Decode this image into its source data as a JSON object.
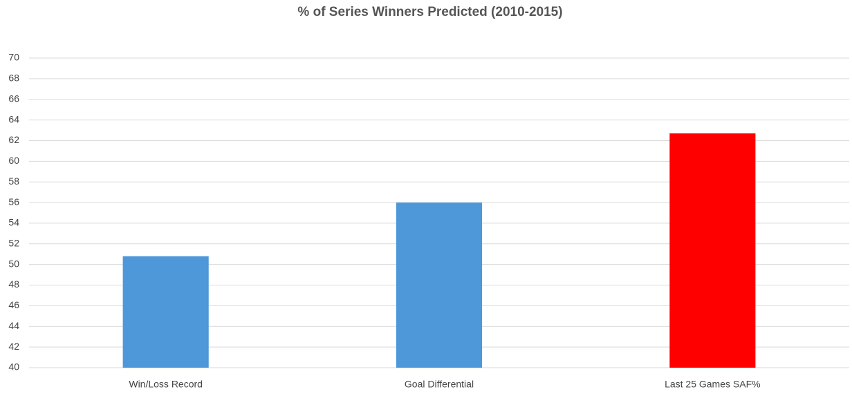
{
  "chart_data": {
    "type": "bar",
    "title": "% of Series Winners Predicted (2010-2015)",
    "categories": [
      "Win/Loss Record",
      "Goal Differential",
      "Last 25 Games SAF%"
    ],
    "values": [
      50.8,
      56,
      62.7
    ],
    "colors": [
      "#4e97d9",
      "#4e97d9",
      "#ff0000"
    ],
    "ylim": [
      40,
      70
    ],
    "yticks": [
      40,
      42,
      44,
      46,
      48,
      50,
      52,
      54,
      56,
      58,
      60,
      62,
      64,
      66,
      68,
      70
    ],
    "grid": true
  }
}
